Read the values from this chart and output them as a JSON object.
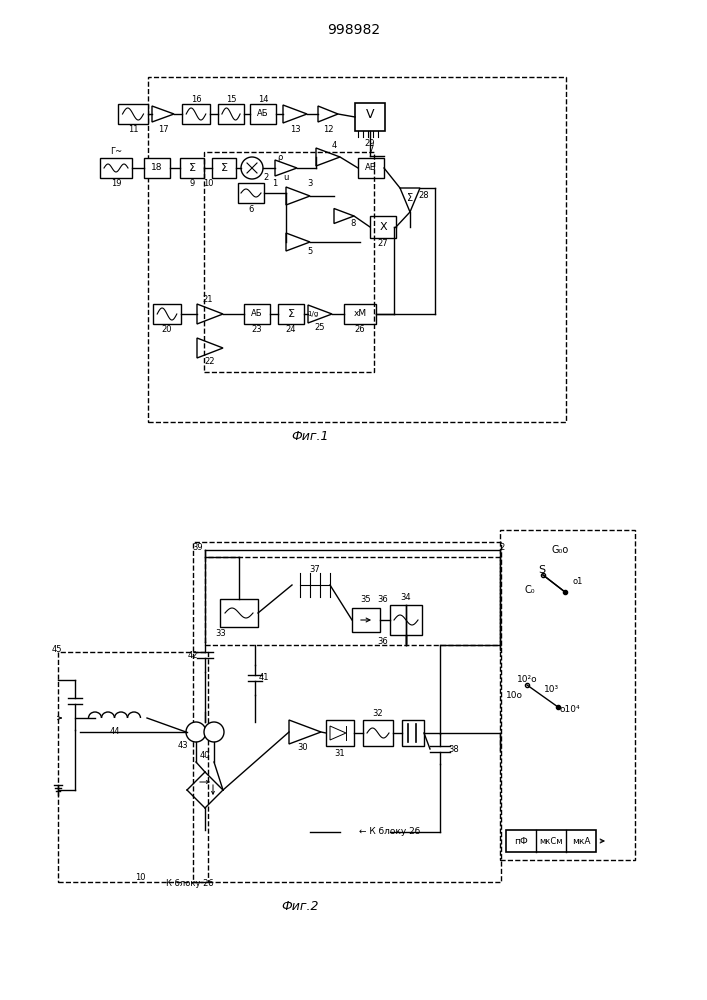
{
  "title": "998982",
  "fig1_label": "Фиг.1",
  "fig2_label": "Фиг.2",
  "bg_color": "#ffffff",
  "line_color": "#000000",
  "text_color": "#000000"
}
